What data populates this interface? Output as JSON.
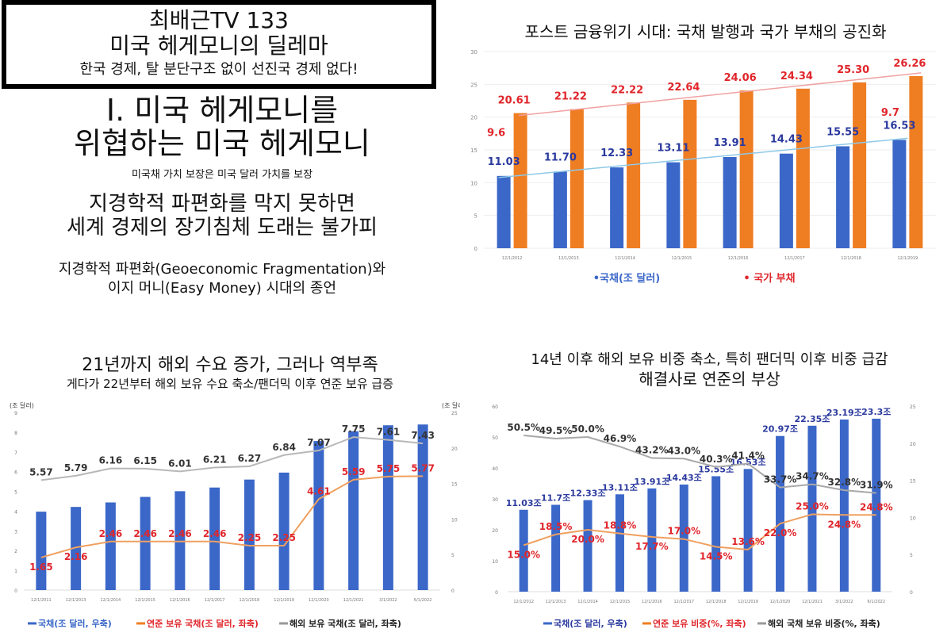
{
  "header": {
    "line1": "최배근TV 133",
    "line2": "미국 헤게모니의 딜레마",
    "line3": "한국 경제, 탈 분단구조 없이 선진국 경제 없다!"
  },
  "section": {
    "heading1": "I. 미국 헤게모니를",
    "heading2": "위협하는 미국 헤게모니",
    "subnote": "미국채 가치 보장은 미국 달러 가치를 보장",
    "h2a": "지경학적 파편화를 막지 못하면",
    "h2b": "세계 경제의 장기침체 도래는 불가피",
    "p1": "지경학적 파편화(Geoeconomic Fragmentation)와",
    "p2": "이지 머니(Easy Money) 시대의 종언"
  },
  "colors": {
    "blue": "#3a67c8",
    "orange": "#ef7d22",
    "red": "#e0262b",
    "gray": "#9d9d9d",
    "navy": "#2b3a9e"
  },
  "chart_data": [
    {
      "type": "bar",
      "title": "포스트 금융위기 시대: 국채 발행과 국가 부채의 공진화",
      "categories": [
        "12/1/2012",
        "12/1/2013",
        "12/1/2014",
        "12/1/2015",
        "12/1/2016",
        "12/1/2017",
        "12/1/2018",
        "12/1/2019"
      ],
      "ylim": [
        0,
        30
      ],
      "yticks": [
        "0",
        "5",
        "10",
        "15",
        "20",
        "25",
        "30"
      ],
      "series": [
        {
          "name": "•국채(조 달러)",
          "values": [
            11.03,
            11.7,
            12.33,
            13.11,
            13.91,
            14.43,
            15.55,
            16.53
          ],
          "labels": [
            "11.03",
            "11.70",
            "12.33",
            "13.11",
            "13.91",
            "14.43",
            "15.55",
            "16.53"
          ]
        },
        {
          "name": "• 국가 부채",
          "values": [
            20.61,
            21.22,
            22.22,
            22.64,
            24.06,
            24.34,
            25.3,
            26.26
          ],
          "labels": [
            "20.61",
            "21.22",
            "22.22",
            "22.64",
            "24.06",
            "24.34",
            "25.30",
            "26.26"
          ]
        }
      ],
      "annotations": [
        "9.6",
        "9.7"
      ],
      "legend": "bottom"
    },
    {
      "type": "bar",
      "title": "21년까지 해외 수요 증가, 그러나 역부족",
      "subtitle": "게다가 22년부터 해외 보유 수요 축소/팬더믹 이후 연준 보유 급증",
      "left_axis_label": "(조 달러)",
      "right_axis_label": "(조 달러)",
      "left_ticks": [
        "0",
        "1",
        "2",
        "3",
        "4",
        "5",
        "6",
        "7",
        "8",
        "9"
      ],
      "right_ticks": [
        "0",
        "5",
        "10",
        "15",
        "20",
        "25"
      ],
      "categories": [
        "12/1/2011",
        "12/1/2013",
        "12/1/2014",
        "12/1/2015",
        "12/1/2016",
        "12/1/2017",
        "12/1/2018",
        "12/1/2019",
        "12/1/2020",
        "12/1/2021",
        "3/1/2022",
        "6/1/2022"
      ],
      "series": [
        {
          "name": "국채(조 달러, 우축)",
          "axis": "right",
          "values": [
            11.03,
            11.7,
            12.33,
            13.11,
            13.91,
            14.43,
            15.55,
            16.53,
            20.97,
            22.35,
            23.19,
            23.3
          ]
        },
        {
          "name": "연준 보유 국채(조 달러, 좌축)",
          "axis": "left",
          "values": [
            1.65,
            2.16,
            2.46,
            2.46,
            2.46,
            2.46,
            2.25,
            2.25,
            4.61,
            5.59,
            5.75,
            5.77
          ],
          "labels": [
            "1.65",
            "2.16",
            "2.46",
            "2.46",
            "2.46",
            "2.46",
            "2.25",
            "2.25",
            "4.61",
            "5.59",
            "5.75",
            "5.77"
          ]
        },
        {
          "name": "해외 보유 국채(조 달러, 좌축)",
          "axis": "left",
          "values": [
            5.57,
            5.79,
            6.16,
            6.15,
            6.01,
            6.21,
            6.27,
            6.84,
            7.07,
            7.75,
            7.61,
            7.43
          ],
          "labels": [
            "5.57",
            "5.79",
            "6.16",
            "6.15",
            "6.01",
            "6.21",
            "6.27",
            "6.84",
            "7.07",
            "7.75",
            "7.61",
            "7.43"
          ]
        }
      ],
      "legend": "bottom"
    },
    {
      "type": "bar",
      "title": "14년 이후 해외 보유 비중 축소, 특히 팬더믹 이후 비중 급감",
      "subtitle": "해결사로 연준의 부상",
      "left_ticks": [
        "0",
        "10",
        "20",
        "30",
        "40",
        "50",
        "60"
      ],
      "right_ticks": [
        "0",
        "5",
        "10",
        "15",
        "20",
        "25"
      ],
      "categories": [
        "12/1/2012",
        "12/1/2013",
        "12/1/2014",
        "12/1/2015",
        "12/1/2016",
        "12/1/2017",
        "12/1/2018",
        "12/1/2019",
        "12/1/2020",
        "12/1/2021",
        "3/1/2022",
        "6/1/2022"
      ],
      "series": [
        {
          "name": "국채(조 달러, 우축)",
          "axis": "right",
          "values": [
            11.03,
            11.7,
            12.33,
            13.11,
            13.91,
            14.43,
            15.55,
            16.53,
            20.97,
            22.35,
            23.19,
            23.3
          ],
          "labels": [
            "11.03조",
            "11.7조",
            "12.33조",
            "13.11조",
            "13.91조",
            "14.43조",
            "15.55조",
            "16.53조",
            "20.97조",
            "22.35조",
            "23.19조",
            "23.3조"
          ]
        },
        {
          "name": "연준 보유 비중(%, 좌축)",
          "axis": "left",
          "values": [
            15.0,
            18.5,
            20.0,
            18.8,
            17.7,
            17.0,
            14.5,
            13.6,
            22.0,
            25.0,
            24.8,
            24.8
          ],
          "labels": [
            "15.0%",
            "18.5%",
            "20.0%",
            "18.8%",
            "17.7%",
            "17.0%",
            "14.5%",
            "13.6%",
            "22.0%",
            "25.0%",
            "24.8%",
            "24.8%"
          ]
        },
        {
          "name": "해외 국채 보유 비중(%, 좌축)",
          "axis": "left",
          "values": [
            50.5,
            49.5,
            50.0,
            46.9,
            43.2,
            43.0,
            40.3,
            41.4,
            33.7,
            34.7,
            32.8,
            31.9
          ],
          "labels": [
            "50.5%",
            "49.5%",
            "50.0%",
            "46.9%",
            "43.2%",
            "43.0%",
            "40.3%",
            "41.4%",
            "33.7%",
            "34.7%",
            "32.8%",
            "31.9%"
          ]
        }
      ],
      "legend": "bottom"
    }
  ]
}
